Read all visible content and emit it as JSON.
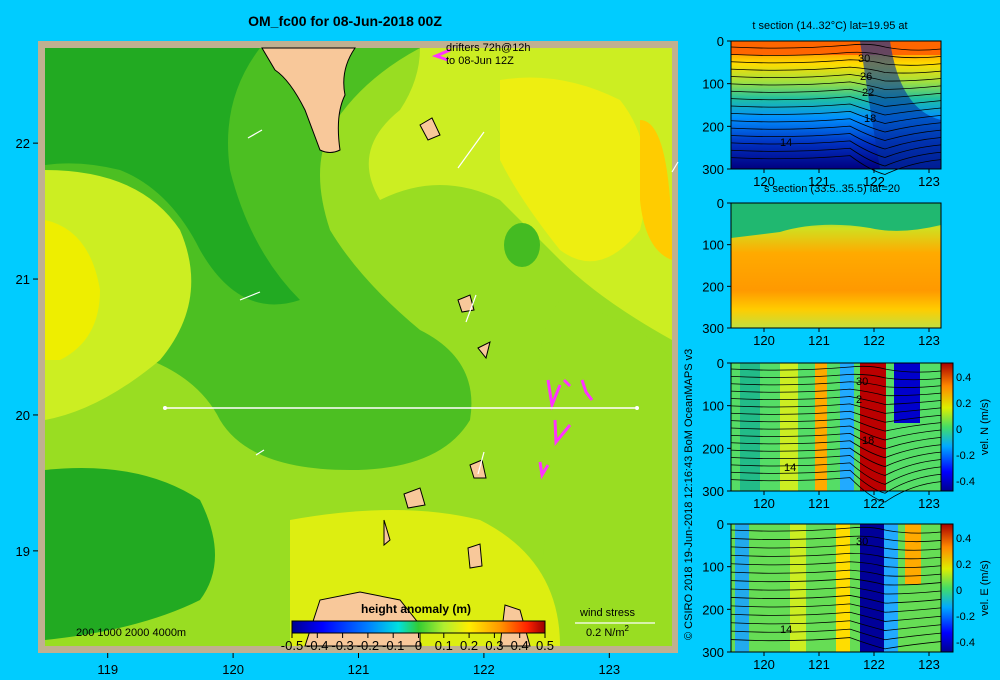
{
  "figure": {
    "title": "OM_fc00 for 08-Jun-2018 00Z",
    "drifters_label_1": "drifters 72h@12h",
    "drifters_label_2": "to 08-Jun 12Z",
    "depth_legend": "200  1000  2000  4000m",
    "colorbar_title": "height anomaly  (m)",
    "wind_label": "wind stress",
    "wind_scale": "0.2 N/m",
    "wind_scale_exp": "2",
    "credit": "© CSIRO 2018   19-Jun-2018 12:16:43 BoM OceanMAPS v3",
    "colors": {
      "background": "#00ccff",
      "land": "#f8c89a",
      "shelf": "#c0b090",
      "drifter": "#ff33ff"
    }
  },
  "chart_data": [
    {
      "type": "heatmap",
      "name": "sea surface height anomaly map",
      "xlim": [
        118.5,
        123.5
      ],
      "ylim": [
        18.3,
        22.7
      ],
      "xticks": [
        "119",
        "120",
        "121",
        "122",
        "123"
      ],
      "yticks": [
        "19",
        "20",
        "21",
        "22"
      ],
      "colorbar": {
        "min": -0.5,
        "max": 0.5,
        "ticks": [
          "-0.5",
          "-0.4",
          "-0.3",
          "-0.2",
          "-0.1",
          "0",
          "0.1",
          "0.2",
          "0.3",
          "0.4",
          "0.5"
        ]
      },
      "section_line": {
        "lat": 20,
        "lon_start": 119.5,
        "lon_end": 123.2
      }
    },
    {
      "type": "heatmap",
      "title": "t section (14..32°C) lat=19.95 at",
      "xticks": [
        "120",
        "121",
        "122",
        "123"
      ],
      "yticks": [
        "0",
        "100",
        "200",
        "300"
      ],
      "contour_labels": [
        "30",
        "26",
        "22",
        "18",
        "14"
      ]
    },
    {
      "type": "heatmap",
      "title": "s section (33.5..35.5) lat=20",
      "xticks": [
        "120",
        "121",
        "122",
        "123"
      ],
      "yticks": [
        "0",
        "100",
        "200",
        "300"
      ]
    },
    {
      "type": "heatmap",
      "xticks": [
        "120",
        "121",
        "122",
        "123"
      ],
      "yticks": [
        "0",
        "100",
        "200",
        "300"
      ],
      "colorbar_label": "vel. N (m/s)",
      "colorbar_ticks": [
        "0.4",
        "0.2",
        "0",
        "-0.2",
        "-0.4"
      ],
      "contour_labels": [
        "30",
        "2",
        "18",
        "14"
      ]
    },
    {
      "type": "heatmap",
      "xticks": [
        "120",
        "121",
        "122",
        "123"
      ],
      "yticks": [
        "0",
        "100",
        "200",
        "300"
      ],
      "colorbar_label": "vel. E (m/s)",
      "colorbar_ticks": [
        "0.4",
        "0.2",
        "0",
        "-0.2",
        "-0.4"
      ],
      "contour_labels": [
        "30",
        "14"
      ]
    }
  ]
}
